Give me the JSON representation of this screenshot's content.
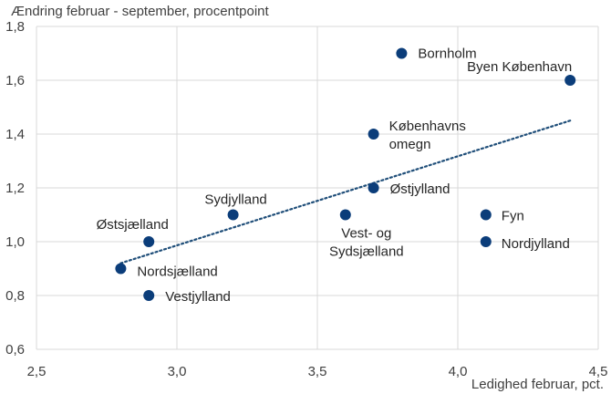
{
  "chart_data": {
    "type": "scatter",
    "title": "",
    "ylabel": "Ændring februar - september, procentpoint",
    "xlabel": "Ledighed februar, pct.",
    "xlim": [
      2.5,
      4.5
    ],
    "ylim": [
      0.6,
      1.8
    ],
    "x_ticks": [
      2.5,
      3.0,
      3.5,
      4.0,
      4.5
    ],
    "x_tick_labels": [
      "2,5",
      "3,0",
      "3,5",
      "4,0",
      "4,5"
    ],
    "y_ticks": [
      0.6,
      0.8,
      1.0,
      1.2,
      1.4,
      1.6,
      1.8
    ],
    "y_tick_labels": [
      "0,6",
      "0,8",
      "1,0",
      "1,2",
      "1,4",
      "1,6",
      "1,8"
    ],
    "grid": true,
    "legend": "none",
    "points": [
      {
        "label": "Bornholm",
        "x": 3.8,
        "y": 1.7
      },
      {
        "label": "Byen København",
        "x": 4.4,
        "y": 1.6
      },
      {
        "label": "Københavns omegn",
        "x": 3.7,
        "y": 1.4
      },
      {
        "label": "Østjylland",
        "x": 3.7,
        "y": 1.2
      },
      {
        "label": "Sydjylland",
        "x": 3.2,
        "y": 1.1
      },
      {
        "label": "Vest- og Sydsjælland",
        "x": 3.6,
        "y": 1.1
      },
      {
        "label": "Fyn",
        "x": 4.1,
        "y": 1.1
      },
      {
        "label": "Østsjælland",
        "x": 2.9,
        "y": 1.0
      },
      {
        "label": "Nordjylland",
        "x": 4.1,
        "y": 1.0
      },
      {
        "label": "Nordsjælland",
        "x": 2.8,
        "y": 0.9
      },
      {
        "label": "Vestjylland",
        "x": 2.9,
        "y": 0.8
      }
    ],
    "trendline": {
      "style": "dotted",
      "x": [
        2.8,
        4.4
      ],
      "y": [
        0.92,
        1.45
      ]
    },
    "colors": {
      "point": "#0b3d7a",
      "trend": "#1f4e79",
      "grid": "#d9d9d9"
    }
  }
}
